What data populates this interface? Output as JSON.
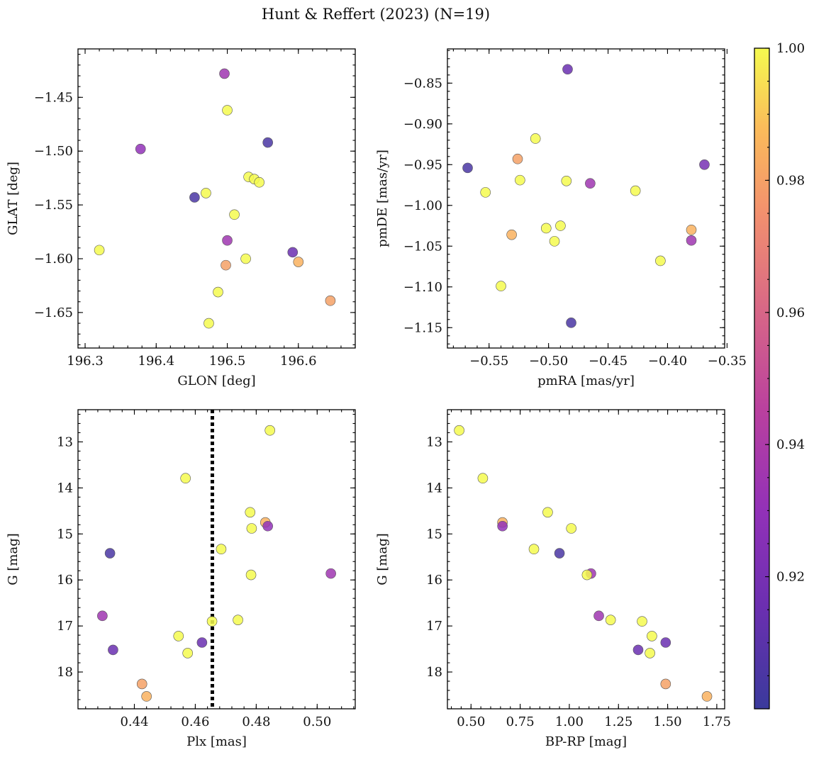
{
  "figure": {
    "title": "Hunt & Reffert (2023) (N=19)"
  },
  "colorbar": {
    "min": 0.9,
    "max": 1.0,
    "ticks": [
      0.92,
      0.94,
      0.96,
      0.98,
      1.0
    ],
    "tick_labels": [
      "0.92",
      "0.94",
      "0.96",
      "0.98",
      "1.00"
    ],
    "colormap": "plasma"
  },
  "chart_data": [
    {
      "type": "scatter",
      "name": "position",
      "xlabel": "GLON [deg]",
      "ylabel": "GLAT [deg]",
      "xlim": [
        196.29,
        196.68
      ],
      "ylim": [
        -1.683,
        -1.405
      ],
      "xticks": [
        196.3,
        196.4,
        196.5,
        196.6
      ],
      "xtick_labels": [
        "196.3",
        "196.4",
        "196.5",
        "196.6"
      ],
      "yticks": [
        -1.45,
        -1.5,
        -1.55,
        -1.6,
        -1.65
      ],
      "ytick_labels": [
        "−1.45",
        "−1.50",
        "−1.55",
        "−1.60",
        "−1.65"
      ],
      "points": [
        {
          "x": 196.496,
          "y": -1.428,
          "c": 0.935
        },
        {
          "x": 196.5,
          "y": -1.462,
          "c": 1.0
        },
        {
          "x": 196.378,
          "y": -1.498,
          "c": 0.93
        },
        {
          "x": 196.557,
          "y": -1.492,
          "c": 0.905
        },
        {
          "x": 196.53,
          "y": -1.524,
          "c": 1.0
        },
        {
          "x": 196.538,
          "y": -1.526,
          "c": 1.0
        },
        {
          "x": 196.545,
          "y": -1.529,
          "c": 1.0
        },
        {
          "x": 196.47,
          "y": -1.539,
          "c": 1.0
        },
        {
          "x": 196.454,
          "y": -1.543,
          "c": 0.905
        },
        {
          "x": 196.51,
          "y": -1.559,
          "c": 1.0
        },
        {
          "x": 196.5,
          "y": -1.583,
          "c": 0.935
        },
        {
          "x": 196.32,
          "y": -1.592,
          "c": 1.0
        },
        {
          "x": 196.592,
          "y": -1.594,
          "c": 0.915
        },
        {
          "x": 196.526,
          "y": -1.6,
          "c": 1.0
        },
        {
          "x": 196.6,
          "y": -1.603,
          "c": 0.985
        },
        {
          "x": 196.498,
          "y": -1.606,
          "c": 0.98
        },
        {
          "x": 196.487,
          "y": -1.631,
          "c": 1.0
        },
        {
          "x": 196.645,
          "y": -1.639,
          "c": 0.98
        },
        {
          "x": 196.474,
          "y": -1.66,
          "c": 1.0
        }
      ]
    },
    {
      "type": "scatter",
      "name": "proper-motion",
      "xlabel": "pmRA [mas/yr]",
      "ylabel": "pmDE [mas/yr]",
      "xlim": [
        -0.585,
        -0.352
      ],
      "ylim": [
        -1.175,
        -0.808
      ],
      "xticks": [
        -0.55,
        -0.5,
        -0.45,
        -0.4,
        -0.35
      ],
      "xtick_labels": [
        "−0.55",
        "−0.50",
        "−0.45",
        "−0.40",
        "−0.35"
      ],
      "yticks": [
        -0.85,
        -0.9,
        -0.95,
        -1.0,
        -1.05,
        -1.1,
        -1.15
      ],
      "ytick_labels": [
        "−0.85",
        "−0.90",
        "−0.95",
        "−1.00",
        "−1.05",
        "−1.10",
        "−1.15"
      ],
      "points": [
        {
          "x": -0.484,
          "y": -0.833,
          "c": 0.915
        },
        {
          "x": -0.511,
          "y": -0.918,
          "c": 1.0
        },
        {
          "x": -0.526,
          "y": -0.943,
          "c": 0.98
        },
        {
          "x": -0.568,
          "y": -0.954,
          "c": 0.905
        },
        {
          "x": -0.369,
          "y": -0.95,
          "c": 0.92
        },
        {
          "x": -0.524,
          "y": -0.969,
          "c": 1.0
        },
        {
          "x": -0.485,
          "y": -0.97,
          "c": 1.0
        },
        {
          "x": -0.465,
          "y": -0.973,
          "c": 0.935
        },
        {
          "x": -0.553,
          "y": -0.984,
          "c": 1.0
        },
        {
          "x": -0.427,
          "y": -0.982,
          "c": 1.0
        },
        {
          "x": -0.502,
          "y": -1.028,
          "c": 1.0
        },
        {
          "x": -0.49,
          "y": -1.025,
          "c": 1.0
        },
        {
          "x": -0.531,
          "y": -1.036,
          "c": 0.985
        },
        {
          "x": -0.38,
          "y": -1.03,
          "c": 0.985
        },
        {
          "x": -0.38,
          "y": -1.043,
          "c": 0.935
        },
        {
          "x": -0.495,
          "y": -1.044,
          "c": 1.0
        },
        {
          "x": -0.406,
          "y": -1.068,
          "c": 1.0
        },
        {
          "x": -0.54,
          "y": -1.099,
          "c": 1.0
        },
        {
          "x": -0.481,
          "y": -1.144,
          "c": 0.905
        }
      ]
    },
    {
      "type": "scatter",
      "name": "parallax-magnitude",
      "xlabel": "Plx [mas]",
      "ylabel": "G [mag]",
      "xlim": [
        0.4215,
        0.5125
      ],
      "ylim": [
        18.8,
        12.3
      ],
      "y_inverted": true,
      "xticks": [
        0.44,
        0.46,
        0.48,
        0.5
      ],
      "xtick_labels": [
        "0.44",
        "0.46",
        "0.48",
        "0.50"
      ],
      "yticks": [
        13,
        14,
        15,
        16,
        17,
        18
      ],
      "ytick_labels": [
        "13",
        "14",
        "15",
        "16",
        "17",
        "18"
      ],
      "vline": {
        "x": 0.4656,
        "style": "dotted"
      },
      "points": [
        {
          "x": 0.4845,
          "y": 12.75,
          "c": 1.0
        },
        {
          "x": 0.4568,
          "y": 13.79,
          "c": 1.0
        },
        {
          "x": 0.478,
          "y": 14.53,
          "c": 1.0
        },
        {
          "x": 0.483,
          "y": 14.75,
          "c": 0.985
        },
        {
          "x": 0.4838,
          "y": 14.83,
          "c": 0.93
        },
        {
          "x": 0.4785,
          "y": 14.88,
          "c": 1.0
        },
        {
          "x": 0.432,
          "y": 15.42,
          "c": 0.905
        },
        {
          "x": 0.4685,
          "y": 15.33,
          "c": 1.0
        },
        {
          "x": 0.4783,
          "y": 15.89,
          "c": 1.0
        },
        {
          "x": 0.5045,
          "y": 15.86,
          "c": 0.935
        },
        {
          "x": 0.4295,
          "y": 16.78,
          "c": 0.935
        },
        {
          "x": 0.4655,
          "y": 16.9,
          "c": 1.0
        },
        {
          "x": 0.474,
          "y": 16.87,
          "c": 1.0
        },
        {
          "x": 0.4545,
          "y": 17.22,
          "c": 1.0
        },
        {
          "x": 0.4622,
          "y": 17.36,
          "c": 0.915
        },
        {
          "x": 0.433,
          "y": 17.52,
          "c": 0.915
        },
        {
          "x": 0.4575,
          "y": 17.59,
          "c": 1.0
        },
        {
          "x": 0.4425,
          "y": 18.26,
          "c": 0.98
        },
        {
          "x": 0.444,
          "y": 18.53,
          "c": 0.985
        }
      ]
    },
    {
      "type": "scatter",
      "name": "color-magnitude",
      "xlabel": "BP-RP [mag]",
      "ylabel": "G [mag]",
      "xlim": [
        0.38,
        1.79
      ],
      "ylim": [
        18.8,
        12.3
      ],
      "y_inverted": true,
      "xticks": [
        0.5,
        0.75,
        1.0,
        1.25,
        1.5,
        1.75
      ],
      "xtick_labels": [
        "0.50",
        "0.75",
        "1.00",
        "1.25",
        "1.50",
        "1.75"
      ],
      "yticks": [
        13,
        14,
        15,
        16,
        17,
        18
      ],
      "ytick_labels": [
        "13",
        "14",
        "15",
        "16",
        "17",
        "18"
      ],
      "points": [
        {
          "x": 0.44,
          "y": 12.75,
          "c": 1.0
        },
        {
          "x": 0.56,
          "y": 13.79,
          "c": 1.0
        },
        {
          "x": 0.66,
          "y": 14.75,
          "c": 0.985
        },
        {
          "x": 0.66,
          "y": 14.83,
          "c": 0.93
        },
        {
          "x": 0.89,
          "y": 14.53,
          "c": 1.0
        },
        {
          "x": 1.01,
          "y": 14.88,
          "c": 1.0
        },
        {
          "x": 0.82,
          "y": 15.33,
          "c": 1.0
        },
        {
          "x": 0.95,
          "y": 15.42,
          "c": 0.905
        },
        {
          "x": 1.11,
          "y": 15.86,
          "c": 0.935
        },
        {
          "x": 1.09,
          "y": 15.89,
          "c": 1.0
        },
        {
          "x": 1.15,
          "y": 16.78,
          "c": 0.935
        },
        {
          "x": 1.21,
          "y": 16.87,
          "c": 1.0
        },
        {
          "x": 1.37,
          "y": 16.9,
          "c": 1.0
        },
        {
          "x": 1.42,
          "y": 17.22,
          "c": 1.0
        },
        {
          "x": 1.49,
          "y": 17.36,
          "c": 0.915
        },
        {
          "x": 1.35,
          "y": 17.52,
          "c": 0.915
        },
        {
          "x": 1.41,
          "y": 17.59,
          "c": 1.0
        },
        {
          "x": 1.49,
          "y": 18.26,
          "c": 0.98
        },
        {
          "x": 1.7,
          "y": 18.53,
          "c": 0.985
        }
      ]
    }
  ]
}
